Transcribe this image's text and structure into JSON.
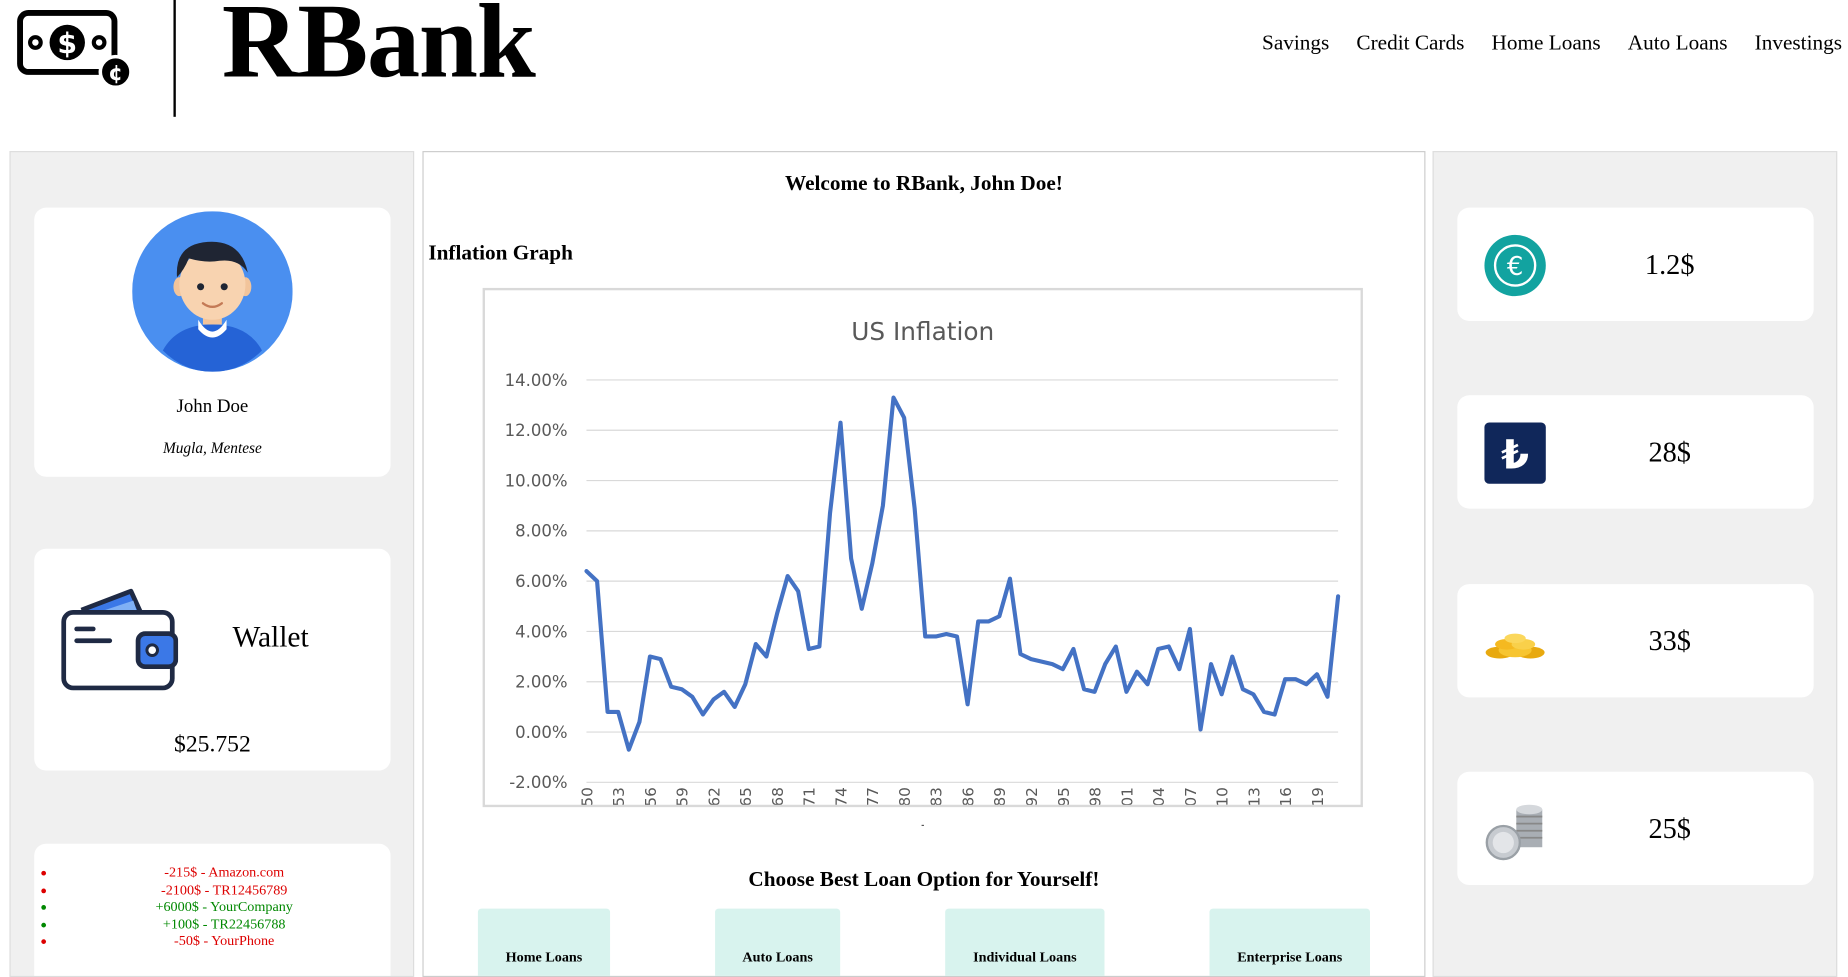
{
  "brand": {
    "name": "RBank",
    "logo_icon": "money-bill-icon"
  },
  "nav": [
    "Savings",
    "Credit Cards",
    "Home Loans",
    "Auto Loans",
    "Investings"
  ],
  "profile": {
    "name": "John Doe",
    "location": "Mugla, Mentese",
    "avatar_icon": "user-avatar-icon"
  },
  "wallet": {
    "label": "Wallet",
    "amount": "$25.752",
    "icon": "wallet-icon"
  },
  "transactions": [
    {
      "text": "-215$ - Amazon.com",
      "type": "negative",
      "color": "#dd0000"
    },
    {
      "text": "-2100$ - TR12456789",
      "type": "negative",
      "color": "#dd0000"
    },
    {
      "text": "+6000$ - YourCompany",
      "type": "positive",
      "color": "#008800"
    },
    {
      "text": "+100$ - TR22456788",
      "type": "positive",
      "color": "#008800"
    },
    {
      "text": "-50$ - YourPhone",
      "type": "negative",
      "color": "#dd0000"
    }
  ],
  "main": {
    "welcome": "Welcome to RBank, John Doe!",
    "graph_heading": "Inflation Graph",
    "loan_heading": "Choose Best Loan Option for Yourself!",
    "loans": [
      "Home Loans",
      "Auto Loans",
      "Individual Loans",
      "Enterprise Loans"
    ]
  },
  "currencies": [
    {
      "value": "1.2$",
      "icon": "euro-coin-icon"
    },
    {
      "value": "28$",
      "icon": "lira-icon"
    },
    {
      "value": "33$",
      "icon": "gold-coins-icon"
    },
    {
      "value": "25$",
      "icon": "silver-coins-stack-icon"
    }
  ],
  "chart_data": {
    "type": "line",
    "title": "US Inflation",
    "xlabel": "",
    "ylabel": "",
    "ylim": [
      -2,
      14
    ],
    "y_ticks": [
      "14.00%",
      "12.00%",
      "10.00%",
      "8.00%",
      "6.00%",
      "4.00%",
      "2.00%",
      "0.00%",
      "-2.00%"
    ],
    "x_ticks": [
      "1950",
      "1953",
      "1956",
      "1959",
      "1962",
      "1965",
      "1968",
      "1971",
      "1974",
      "1977",
      "1980",
      "1983",
      "1986",
      "1989",
      "1992",
      "1995",
      "1998",
      "2001",
      "2004",
      "2007",
      "2010",
      "2013",
      "2016",
      "2019"
    ],
    "grid": true,
    "color": "#4472c4",
    "x": [
      1950,
      1951,
      1952,
      1953,
      1954,
      1955,
      1956,
      1957,
      1958,
      1959,
      1960,
      1961,
      1962,
      1963,
      1964,
      1965,
      1966,
      1967,
      1968,
      1969,
      1970,
      1971,
      1972,
      1973,
      1974,
      1975,
      1976,
      1977,
      1978,
      1979,
      1980,
      1981,
      1982,
      1983,
      1984,
      1985,
      1986,
      1987,
      1988,
      1989,
      1990,
      1991,
      1992,
      1993,
      1994,
      1995,
      1996,
      1997,
      1998,
      1999,
      2000,
      2001,
      2002,
      2003,
      2004,
      2005,
      2006,
      2007,
      2008,
      2009,
      2010,
      2011,
      2012,
      2013,
      2014,
      2015,
      2016,
      2017,
      2018,
      2019,
      2020,
      2021
    ],
    "values": [
      6.4,
      6.0,
      0.8,
      0.8,
      -0.7,
      0.4,
      3.0,
      2.9,
      1.8,
      1.7,
      1.4,
      0.7,
      1.3,
      1.6,
      1.0,
      1.9,
      3.5,
      3.0,
      4.7,
      6.2,
      5.6,
      3.3,
      3.4,
      8.7,
      12.3,
      6.9,
      4.9,
      6.7,
      9.0,
      13.3,
      12.5,
      8.9,
      3.8,
      3.8,
      3.9,
      3.8,
      1.1,
      4.4,
      4.4,
      4.6,
      6.1,
      3.1,
      2.9,
      2.8,
      2.7,
      2.5,
      3.3,
      1.7,
      1.6,
      2.7,
      3.4,
      1.6,
      2.4,
      1.9,
      3.3,
      3.4,
      2.5,
      4.1,
      0.1,
      2.7,
      1.5,
      3.0,
      1.7,
      1.5,
      0.8,
      0.7,
      2.1,
      2.1,
      1.9,
      2.3,
      1.4,
      5.4
    ]
  }
}
